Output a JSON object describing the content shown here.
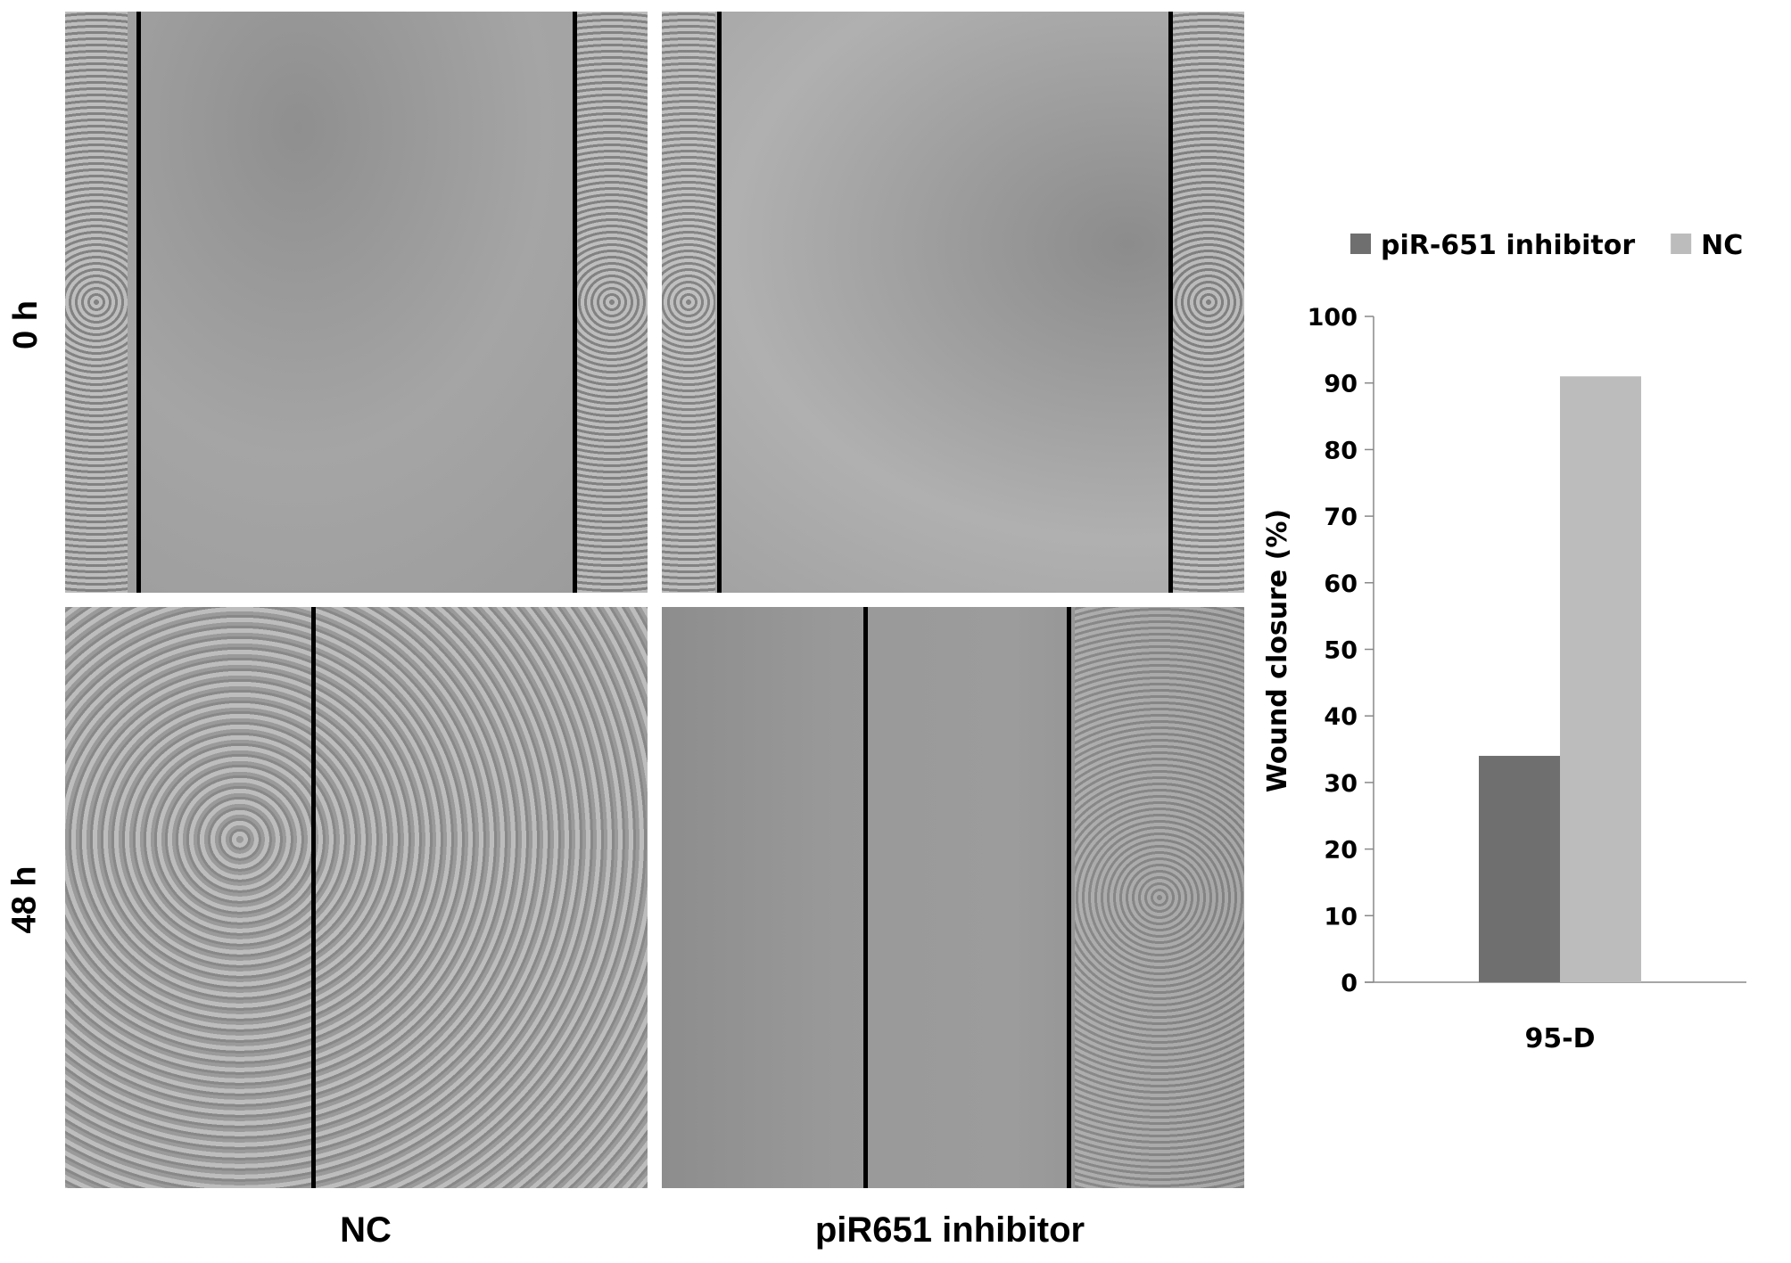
{
  "panels": {
    "row_labels": [
      "0 h",
      "48 h"
    ],
    "column_labels": [
      "NC",
      "piR651 inhibitor"
    ]
  },
  "chart_data": {
    "type": "bar",
    "categories": [
      "95-D"
    ],
    "series": [
      {
        "name": "piR-651 inhibitor",
        "values": [
          34
        ],
        "color": "#6f6f6f"
      },
      {
        "name": "NC",
        "values": [
          91
        ],
        "color": "#bcbcbc"
      }
    ],
    "ylabel": "Wound closure (%)",
    "xlabel": "",
    "ylim": [
      0,
      100
    ],
    "yticks": [
      "0",
      "10",
      "20",
      "30",
      "40",
      "50",
      "60",
      "70",
      "80",
      "90",
      "100"
    ],
    "grid": false,
    "legend": "top"
  }
}
